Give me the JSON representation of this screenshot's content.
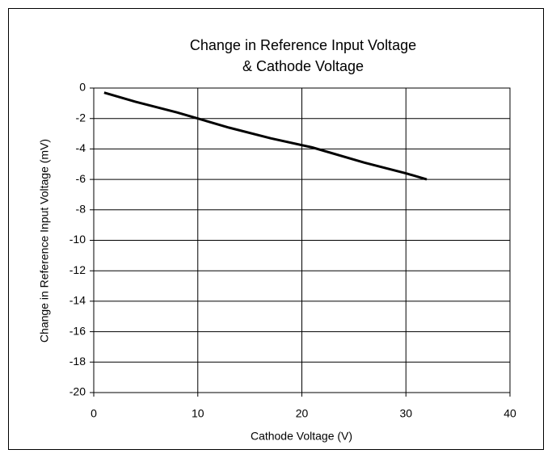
{
  "chart_data": {
    "type": "line",
    "title": [
      "Change in Reference Input Voltage",
      "& Cathode Voltage"
    ],
    "xlabel": "Cathode Voltage (V)",
    "ylabel": "Change in Reference Input Voltage (mV)",
    "x": [
      1,
      4,
      8,
      10,
      13,
      17,
      21,
      26,
      30,
      32
    ],
    "series": [
      {
        "color": "#000000",
        "values": [
          -0.3,
          -0.9,
          -1.6,
          -2,
          -2.6,
          -3.3,
          -3.9,
          -4.9,
          -5.6,
          -6
        ]
      }
    ],
    "xlim": [
      0,
      40
    ],
    "xticks": [
      0,
      10,
      20,
      30,
      40
    ],
    "ylim": [
      -20,
      0
    ],
    "yticks": [
      0,
      -2,
      -4,
      -6,
      -8,
      -10,
      -12,
      -14,
      -16,
      -18,
      -20
    ],
    "grid": true
  }
}
